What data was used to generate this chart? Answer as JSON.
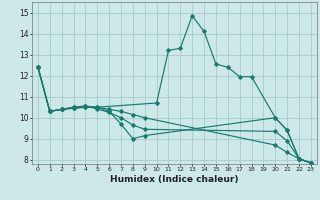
{
  "xlabel": "Humidex (Indice chaleur)",
  "xlim": [
    -0.5,
    23.5
  ],
  "ylim": [
    7.8,
    15.5
  ],
  "yticks": [
    8,
    9,
    10,
    11,
    12,
    13,
    14,
    15
  ],
  "xticks": [
    0,
    1,
    2,
    3,
    4,
    5,
    6,
    7,
    8,
    9,
    10,
    11,
    12,
    13,
    14,
    15,
    16,
    17,
    18,
    19,
    20,
    21,
    22,
    23
  ],
  "background_color": "#cce8e8",
  "grid_color": "#aacece",
  "line_color": "#1a7a6e",
  "line_groups": [
    {
      "x": [
        0,
        1,
        2,
        3,
        4,
        5,
        10,
        11,
        12,
        13,
        14,
        15,
        16,
        17,
        18,
        20,
        21,
        22,
        23
      ],
      "y": [
        12.4,
        10.3,
        10.4,
        10.45,
        10.5,
        10.5,
        10.7,
        13.2,
        13.3,
        14.85,
        14.1,
        12.55,
        12.4,
        11.95,
        11.95,
        10.0,
        9.4,
        8.05,
        7.85
      ]
    },
    {
      "x": [
        0,
        1,
        2,
        3,
        4,
        5,
        6,
        7,
        8,
        9,
        20,
        21,
        22,
        23
      ],
      "y": [
        12.4,
        10.3,
        10.4,
        10.45,
        10.5,
        10.5,
        10.3,
        9.7,
        9.0,
        9.15,
        10.0,
        9.4,
        8.05,
        7.85
      ]
    },
    {
      "x": [
        0,
        1,
        2,
        3,
        4,
        5,
        6,
        7,
        8,
        9,
        20,
        21,
        22,
        23
      ],
      "y": [
        12.4,
        10.3,
        10.4,
        10.5,
        10.55,
        10.42,
        10.25,
        10.0,
        9.65,
        9.45,
        9.35,
        8.9,
        8.05,
        7.85
      ]
    },
    {
      "x": [
        0,
        1,
        2,
        3,
        4,
        5,
        6,
        7,
        8,
        9,
        20,
        21,
        22,
        23
      ],
      "y": [
        12.4,
        10.3,
        10.4,
        10.5,
        10.55,
        10.5,
        10.4,
        10.3,
        10.15,
        10.0,
        8.7,
        8.35,
        8.05,
        7.85
      ]
    }
  ]
}
